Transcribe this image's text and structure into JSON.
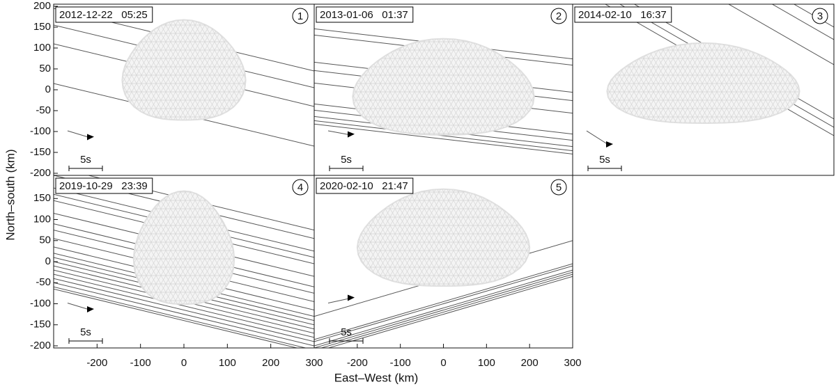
{
  "figure": {
    "xlabel": "East–West (km)",
    "ylabel": "North–south (km)"
  },
  "chart_data": [
    {
      "type": "occultation",
      "title": "2012-12-22   05:25",
      "panel": "1",
      "scale_label": "5s",
      "xlim": [
        -300,
        300
      ],
      "ylim": [
        -205,
        205
      ],
      "yticks": [
        -200,
        -150,
        -100,
        -50,
        0,
        50,
        100,
        150,
        200
      ]
    },
    {
      "type": "occultation",
      "title": "2013-01-06   01:37",
      "panel": "2",
      "scale_label": "5s",
      "xlim": [
        -300,
        300
      ],
      "ylim": [
        -205,
        205
      ]
    },
    {
      "type": "occultation",
      "title": "2014-02-10   16:37",
      "panel": "3",
      "scale_label": "5s",
      "xlim": [
        -300,
        300
      ],
      "ylim": [
        -205,
        205
      ]
    },
    {
      "type": "occultation",
      "title": "2019-10-29   23:39",
      "panel": "4",
      "scale_label": "5s",
      "xlim": [
        -300,
        300
      ],
      "ylim": [
        -205,
        205
      ],
      "yticks": [
        -200,
        -150,
        -100,
        -50,
        0,
        50,
        100,
        150
      ],
      "xticks": [
        -200,
        -100,
        0,
        100,
        200,
        300
      ]
    },
    {
      "type": "occultation",
      "title": "2020-02-10   21:47",
      "panel": "5",
      "scale_label": "5s",
      "xlim": [
        -300,
        300
      ],
      "ylim": [
        -205,
        205
      ],
      "xticks": [
        -200,
        -100,
        0,
        100,
        200,
        300
      ]
    }
  ]
}
